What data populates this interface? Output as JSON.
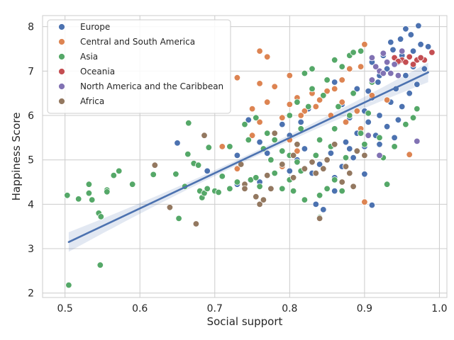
{
  "chart_data": {
    "type": "scatter",
    "title": "",
    "xlabel": "Social support",
    "ylabel": "Happiness Score",
    "xlim": [
      0.47,
      1.01
    ],
    "ylim": [
      1.9,
      8.25
    ],
    "xticks": [
      "0.5",
      "0.6",
      "0.7",
      "0.8",
      "0.9",
      "1.0"
    ],
    "yticks": [
      "2",
      "3",
      "4",
      "5",
      "6",
      "7",
      "8"
    ],
    "grid": true,
    "legend_position": "top-left",
    "regression": {
      "x": [
        0.505,
        0.985
      ],
      "y": [
        3.15,
        6.97
      ],
      "band": 0.22,
      "color": "#4c72b0"
    },
    "series": [
      {
        "name": "Europe",
        "color": "#4c72b0",
        "points": [
          [
            0.955,
            7.95
          ],
          [
            0.972,
            8.02
          ],
          [
            0.962,
            7.82
          ],
          [
            0.948,
            7.72
          ],
          [
            0.975,
            7.6
          ],
          [
            0.985,
            7.55
          ],
          [
            0.938,
            7.48
          ],
          [
            0.925,
            7.35
          ],
          [
            0.945,
            7.2
          ],
          [
            0.965,
            7.1
          ],
          [
            0.93,
            7.05
          ],
          [
            0.955,
            6.9
          ],
          [
            0.918,
            6.75
          ],
          [
            0.942,
            6.6
          ],
          [
            0.96,
            6.5
          ],
          [
            0.91,
            6.4
          ],
          [
            0.935,
            6.3
          ],
          [
            0.95,
            6.2
          ],
          [
            0.9,
            6.1
          ],
          [
            0.92,
            6.0
          ],
          [
            0.88,
            5.95
          ],
          [
            0.905,
            5.85
          ],
          [
            0.93,
            5.75
          ],
          [
            0.86,
            5.7
          ],
          [
            0.89,
            5.6
          ],
          [
            0.915,
            5.55
          ],
          [
            0.84,
            5.45
          ],
          [
            0.875,
            5.4
          ],
          [
            0.9,
            5.3
          ],
          [
            0.82,
            5.25
          ],
          [
            0.855,
            5.15
          ],
          [
            0.885,
            5.05
          ],
          [
            0.81,
            5.0
          ],
          [
            0.84,
            4.9
          ],
          [
            0.87,
            4.85
          ],
          [
            0.8,
            4.75
          ],
          [
            0.83,
            4.7
          ],
          [
            0.86,
            4.6
          ],
          [
            0.76,
            5.4
          ],
          [
            0.745,
            5.9
          ],
          [
            0.77,
            5.15
          ],
          [
            0.73,
            5.1
          ],
          [
            0.79,
            5.8
          ],
          [
            0.73,
            4.45
          ],
          [
            0.69,
            4.75
          ],
          [
            0.65,
            5.38
          ],
          [
            0.76,
            4.5
          ],
          [
            0.9,
            4.68
          ],
          [
            0.91,
            3.98
          ],
          [
            0.86,
            4.3
          ],
          [
            0.845,
            3.88
          ],
          [
            0.835,
            4.0
          ],
          [
            0.94,
            5.5
          ],
          [
            0.97,
            6.7
          ],
          [
            0.98,
            7.05
          ],
          [
            0.92,
            6.9
          ],
          [
            0.95,
            7.35
          ],
          [
            0.935,
            7.65
          ],
          [
            0.91,
            7.2
          ],
          [
            0.965,
            7.45
          ],
          [
            0.89,
            6.6
          ],
          [
            0.87,
            6.25
          ],
          [
            0.8,
            5.55
          ],
          [
            0.815,
            5.85
          ],
          [
            0.88,
            5.25
          ],
          [
            0.92,
            5.35
          ],
          [
            0.945,
            5.9
          ],
          [
            0.825,
            6.15
          ],
          [
            0.905,
            6.55
          ],
          [
            0.86,
            6.75
          ]
        ]
      },
      {
        "name": "Central and South America",
        "color": "#dd8452",
        "points": [
          [
            0.76,
            7.45
          ],
          [
            0.77,
            7.32
          ],
          [
            0.73,
            6.85
          ],
          [
            0.76,
            6.72
          ],
          [
            0.78,
            6.65
          ],
          [
            0.87,
            6.8
          ],
          [
            0.895,
            7.1
          ],
          [
            0.9,
            7.6
          ],
          [
            0.88,
            7.05
          ],
          [
            0.86,
            6.6
          ],
          [
            0.83,
            6.5
          ],
          [
            0.81,
            6.4
          ],
          [
            0.8,
            6.25
          ],
          [
            0.82,
            6.1
          ],
          [
            0.79,
            5.95
          ],
          [
            0.77,
            6.3
          ],
          [
            0.75,
            6.15
          ],
          [
            0.76,
            5.85
          ],
          [
            0.78,
            5.6
          ],
          [
            0.8,
            5.45
          ],
          [
            0.81,
            5.2
          ],
          [
            0.79,
            4.85
          ],
          [
            0.77,
            4.65
          ],
          [
            0.73,
            4.8
          ],
          [
            0.71,
            5.3
          ],
          [
            0.75,
            5.55
          ],
          [
            0.84,
            6.35
          ],
          [
            0.85,
            6.55
          ],
          [
            0.87,
            6.3
          ],
          [
            0.89,
            6.1
          ],
          [
            0.91,
            6.45
          ],
          [
            0.93,
            6.35
          ],
          [
            0.96,
            5.12
          ],
          [
            0.9,
            4.05
          ],
          [
            0.8,
            6.9
          ],
          [
            0.815,
            6.0
          ],
          [
            0.835,
            6.2
          ],
          [
            0.855,
            6.0
          ],
          [
            0.875,
            5.85
          ],
          [
            0.895,
            5.7
          ]
        ]
      },
      {
        "name": "Asia",
        "color": "#55a868",
        "points": [
          [
            0.503,
            4.2
          ],
          [
            0.505,
            2.18
          ],
          [
            0.518,
            4.12
          ],
          [
            0.532,
            4.45
          ],
          [
            0.532,
            4.25
          ],
          [
            0.536,
            4.1
          ],
          [
            0.545,
            3.8
          ],
          [
            0.548,
            3.72
          ],
          [
            0.547,
            2.63
          ],
          [
            0.556,
            4.32
          ],
          [
            0.556,
            4.28
          ],
          [
            0.565,
            4.65
          ],
          [
            0.572,
            4.75
          ],
          [
            0.59,
            4.45
          ],
          [
            0.618,
            4.67
          ],
          [
            0.648,
            4.68
          ],
          [
            0.652,
            3.68
          ],
          [
            0.66,
            4.4
          ],
          [
            0.664,
            5.13
          ],
          [
            0.665,
            5.83
          ],
          [
            0.672,
            4.92
          ],
          [
            0.678,
            4.88
          ],
          [
            0.68,
            4.3
          ],
          [
            0.683,
            4.15
          ],
          [
            0.686,
            4.25
          ],
          [
            0.69,
            4.35
          ],
          [
            0.692,
            5.28
          ],
          [
            0.7,
            4.3
          ],
          [
            0.705,
            4.27
          ],
          [
            0.71,
            4.63
          ],
          [
            0.72,
            4.35
          ],
          [
            0.73,
            4.5
          ],
          [
            0.74,
            5.8
          ],
          [
            0.745,
            5.45
          ],
          [
            0.748,
            4.55
          ],
          [
            0.755,
            4.6
          ],
          [
            0.76,
            4.4
          ],
          [
            0.765,
            5.25
          ],
          [
            0.77,
            5.6
          ],
          [
            0.775,
            5.0
          ],
          [
            0.78,
            4.7
          ],
          [
            0.79,
            5.2
          ],
          [
            0.8,
            4.55
          ],
          [
            0.805,
            4.3
          ],
          [
            0.81,
            4.95
          ],
          [
            0.815,
            5.7
          ],
          [
            0.82,
            6.95
          ],
          [
            0.83,
            7.05
          ],
          [
            0.84,
            4.2
          ],
          [
            0.85,
            4.35
          ],
          [
            0.86,
            4.55
          ],
          [
            0.87,
            7.1
          ],
          [
            0.88,
            7.35
          ],
          [
            0.885,
            7.42
          ],
          [
            0.895,
            7.45
          ],
          [
            0.86,
            7.25
          ],
          [
            0.85,
            6.8
          ],
          [
            0.83,
            6.6
          ],
          [
            0.81,
            6.3
          ],
          [
            0.84,
            5.45
          ],
          [
            0.86,
            5.7
          ],
          [
            0.88,
            6.0
          ],
          [
            0.9,
            5.35
          ],
          [
            0.92,
            5.5
          ],
          [
            0.93,
            4.45
          ],
          [
            0.94,
            5.3
          ],
          [
            0.955,
            5.8
          ],
          [
            0.965,
            5.95
          ],
          [
            0.97,
            6.15
          ],
          [
            0.925,
            5.05
          ],
          [
            0.895,
            5.6
          ],
          [
            0.875,
            5.05
          ],
          [
            0.855,
            5.3
          ],
          [
            0.835,
            5.1
          ],
          [
            0.815,
            4.75
          ],
          [
            0.78,
            5.45
          ],
          [
            0.8,
            6.0
          ],
          [
            0.825,
            6.2
          ],
          [
            0.845,
            6.45
          ],
          [
            0.865,
            6.2
          ],
          [
            0.885,
            6.5
          ],
          [
            0.905,
            6.05
          ],
          [
            0.91,
            6.75
          ],
          [
            0.8,
            5.1
          ],
          [
            0.79,
            4.35
          ],
          [
            0.82,
            4.1
          ],
          [
            0.87,
            4.3
          ],
          [
            0.72,
            5.3
          ],
          [
            0.755,
            5.95
          ],
          [
            0.84,
            3.7
          ]
        ]
      },
      {
        "name": "Oceania",
        "color": "#c44e52",
        "points": [
          [
            0.94,
            7.3
          ],
          [
            0.95,
            7.25
          ],
          [
            0.955,
            7.2
          ],
          [
            0.96,
            7.32
          ],
          [
            0.945,
            7.22
          ],
          [
            0.97,
            7.25
          ],
          [
            0.98,
            7.25
          ],
          [
            0.99,
            7.42
          ],
          [
            0.975,
            7.3
          ],
          [
            0.965,
            7.15
          ]
        ]
      },
      {
        "name": "North America and the Caribbean",
        "color": "#8172b3",
        "points": [
          [
            0.91,
            7.3
          ],
          [
            0.92,
            7.0
          ],
          [
            0.925,
            6.95
          ],
          [
            0.93,
            7.2
          ],
          [
            0.91,
            6.8
          ],
          [
            0.95,
            7.45
          ],
          [
            0.94,
            7.15
          ],
          [
            0.935,
            6.95
          ],
          [
            0.925,
            7.4
          ],
          [
            0.97,
            5.42
          ],
          [
            0.92,
            5.1
          ],
          [
            0.905,
            5.55
          ],
          [
            0.945,
            6.9
          ],
          [
            0.915,
            7.1
          ]
        ]
      },
      {
        "name": "Africa",
        "color": "#937860",
        "points": [
          [
            0.62,
            4.88
          ],
          [
            0.64,
            3.93
          ],
          [
            0.675,
            3.56
          ],
          [
            0.686,
            5.55
          ],
          [
            0.74,
            4.45
          ],
          [
            0.74,
            4.35
          ],
          [
            0.755,
            4.17
          ],
          [
            0.76,
            4.0
          ],
          [
            0.765,
            4.1
          ],
          [
            0.77,
            4.65
          ],
          [
            0.775,
            4.35
          ],
          [
            0.78,
            5.6
          ],
          [
            0.79,
            4.9
          ],
          [
            0.805,
            5.1
          ],
          [
            0.805,
            4.6
          ],
          [
            0.81,
            5.35
          ],
          [
            0.82,
            4.8
          ],
          [
            0.83,
            4.95
          ],
          [
            0.835,
            4.7
          ],
          [
            0.84,
            3.68
          ],
          [
            0.845,
            4.8
          ],
          [
            0.85,
            5.0
          ],
          [
            0.86,
            5.35
          ],
          [
            0.87,
            4.5
          ],
          [
            0.875,
            4.85
          ],
          [
            0.88,
            4.7
          ],
          [
            0.885,
            4.4
          ],
          [
            0.89,
            5.2
          ],
          [
            0.9,
            5.1
          ],
          [
            0.735,
            4.9
          ]
        ]
      }
    ]
  }
}
